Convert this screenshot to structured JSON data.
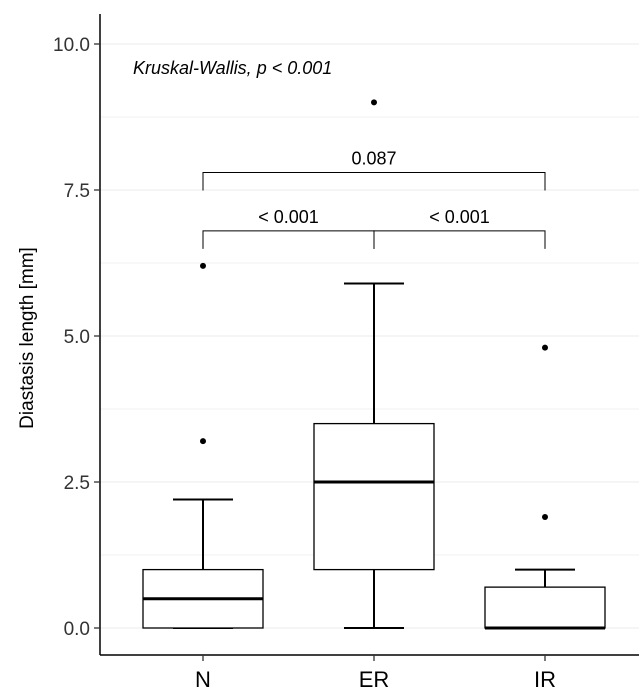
{
  "chart_data": {
    "type": "box",
    "title": "",
    "xlabel": "",
    "ylabel": "Diastasis length [mm]",
    "ylim": [
      -0.45,
      10.5
    ],
    "yticks": [
      0.0,
      2.5,
      5.0,
      7.5,
      10.0
    ],
    "ytick_labels": [
      "0.0",
      "2.5",
      "5.0",
      "7.5",
      "10.0"
    ],
    "grid": true,
    "categories": [
      "N",
      "ER",
      "IR"
    ],
    "boxes": [
      {
        "category": "N",
        "whisker_low": 0.0,
        "q1": 0.0,
        "median": 0.5,
        "q3": 1.0,
        "whisker_high": 2.2,
        "outliers": [
          3.2,
          6.2
        ]
      },
      {
        "category": "ER",
        "whisker_low": 0.0,
        "q1": 1.0,
        "median": 2.5,
        "q3": 3.5,
        "whisker_high": 5.9,
        "outliers": [
          9.0
        ]
      },
      {
        "category": "IR",
        "whisker_low": 0.0,
        "q1": 0.0,
        "median": 0.0,
        "q3": 0.7,
        "whisker_high": 1.0,
        "outliers": [
          1.9,
          4.8
        ]
      }
    ],
    "annotation": "Kruskal-Wallis, p < 0.001",
    "comparisons": [
      {
        "from": "N",
        "to": "ER",
        "label": "< 0.001",
        "level": 6.8
      },
      {
        "from": "ER",
        "to": "IR",
        "label": "< 0.001",
        "level": 6.8
      },
      {
        "from": "N",
        "to": "IR",
        "label": "0.087",
        "level": 7.8
      }
    ]
  }
}
